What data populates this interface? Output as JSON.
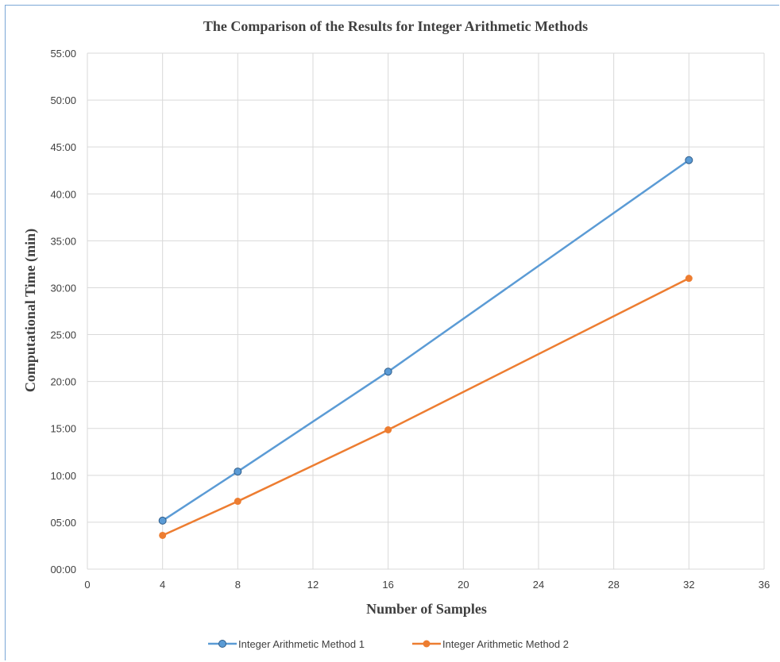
{
  "chart_data": {
    "type": "line",
    "title": "The Comparison of the Results for Integer Arithmetic Methods",
    "xlabel": "Number of Samples",
    "ylabel": "Computational Time (min)",
    "xlim": [
      0,
      36
    ],
    "ylim": [
      0,
      55
    ],
    "x_ticks": [
      0,
      4,
      8,
      12,
      16,
      20,
      24,
      28,
      32,
      36
    ],
    "y_ticks": [
      {
        "value": 0,
        "label": "00:00"
      },
      {
        "value": 5,
        "label": "05:00"
      },
      {
        "value": 10,
        "label": "10:00"
      },
      {
        "value": 15,
        "label": "15:00"
      },
      {
        "value": 20,
        "label": "20:00"
      },
      {
        "value": 25,
        "label": "25:00"
      },
      {
        "value": 30,
        "label": "30:00"
      },
      {
        "value": 35,
        "label": "35:00"
      },
      {
        "value": 40,
        "label": "40:00"
      },
      {
        "value": 45,
        "label": "45:00"
      },
      {
        "value": 50,
        "label": "50:00"
      },
      {
        "value": 55,
        "label": "55:00"
      }
    ],
    "grid": true,
    "legend_position": "bottom",
    "series": [
      {
        "name": "Integer Arithmetic Method 1",
        "color": "#5b9bd5",
        "marker_fill": "#5b9bd5",
        "x": [
          4,
          8,
          16,
          32
        ],
        "y": [
          5.17,
          10.4,
          21.05,
          43.6
        ]
      },
      {
        "name": "Integer Arithmetic Method 2",
        "color": "#ed7d31",
        "marker_fill": "#ed7d31",
        "x": [
          4,
          8,
          16,
          32
        ],
        "y": [
          3.6,
          7.23,
          14.85,
          31.0
        ]
      }
    ]
  }
}
